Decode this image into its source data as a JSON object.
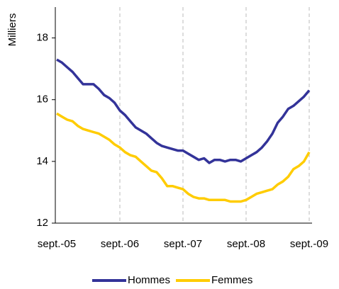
{
  "chart_data": {
    "type": "line",
    "ylabel": "Milliers",
    "categories": [
      "sept.-05",
      null,
      null,
      null,
      null,
      null,
      null,
      null,
      null,
      null,
      null,
      null,
      "sept.-06",
      null,
      null,
      null,
      null,
      null,
      null,
      null,
      null,
      null,
      null,
      null,
      "sept.-07",
      null,
      null,
      null,
      null,
      null,
      null,
      null,
      null,
      null,
      null,
      null,
      "sept.-08",
      null,
      null,
      null,
      null,
      null,
      null,
      null,
      null,
      null,
      null,
      null,
      "sept.-09"
    ],
    "series": [
      {
        "name": "Hommes",
        "color": "#333399",
        "values": [
          17.3,
          17.2,
          17.05,
          16.9,
          16.7,
          16.5,
          16.5,
          16.5,
          16.35,
          16.15,
          16.05,
          15.9,
          15.65,
          15.5,
          15.3,
          15.1,
          15.0,
          14.9,
          14.75,
          14.6,
          14.5,
          14.45,
          14.4,
          14.35,
          14.35,
          14.25,
          14.15,
          14.05,
          14.1,
          13.95,
          14.05,
          14.05,
          14.0,
          14.05,
          14.05,
          14.0,
          14.1,
          14.2,
          14.3,
          14.45,
          14.65,
          14.9,
          15.25,
          15.45,
          15.7,
          15.8,
          15.95,
          16.1,
          16.3
        ]
      },
      {
        "name": "Femmes",
        "color": "#ffcc00",
        "values": [
          15.55,
          15.45,
          15.35,
          15.3,
          15.15,
          15.05,
          15.0,
          14.95,
          14.9,
          14.8,
          14.7,
          14.55,
          14.45,
          14.3,
          14.2,
          14.15,
          14.0,
          13.85,
          13.7,
          13.65,
          13.45,
          13.2,
          13.2,
          13.15,
          13.1,
          12.95,
          12.85,
          12.8,
          12.8,
          12.75,
          12.75,
          12.75,
          12.75,
          12.7,
          12.7,
          12.7,
          12.75,
          12.85,
          12.95,
          13.0,
          13.05,
          13.1,
          13.25,
          13.35,
          13.5,
          13.75,
          13.85,
          14.0,
          14.3
        ]
      }
    ],
    "ylim": [
      12,
      19
    ],
    "yticks": [
      12,
      14,
      16,
      18
    ],
    "grid_x": true,
    "legend": "bottom"
  }
}
